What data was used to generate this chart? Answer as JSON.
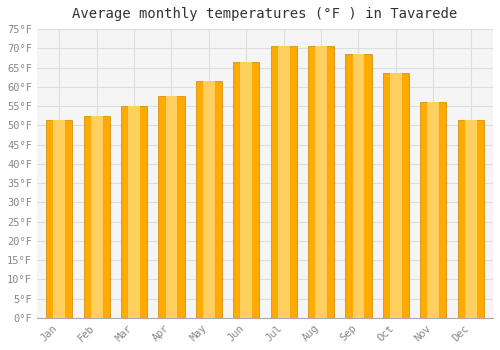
{
  "title": "Average monthly temperatures (°F ) in Tavarede",
  "months": [
    "Jan",
    "Feb",
    "Mar",
    "Apr",
    "May",
    "Jun",
    "Jul",
    "Aug",
    "Sep",
    "Oct",
    "Nov",
    "Dec"
  ],
  "values": [
    51.5,
    52.5,
    55.0,
    57.5,
    61.5,
    66.5,
    70.5,
    70.5,
    68.5,
    63.5,
    56.0,
    51.5
  ],
  "bar_color": "#FFAA00",
  "bar_highlight": "#FFD060",
  "bar_edge_color": "#CC8800",
  "ylim": [
    0,
    75
  ],
  "yticks": [
    0,
    5,
    10,
    15,
    20,
    25,
    30,
    35,
    40,
    45,
    50,
    55,
    60,
    65,
    70,
    75
  ],
  "bg_color": "#FFFFFF",
  "plot_bg_color": "#F5F5F5",
  "grid_color": "#DDDDDD",
  "title_fontsize": 10,
  "tick_fontsize": 7.5,
  "font_family": "monospace"
}
